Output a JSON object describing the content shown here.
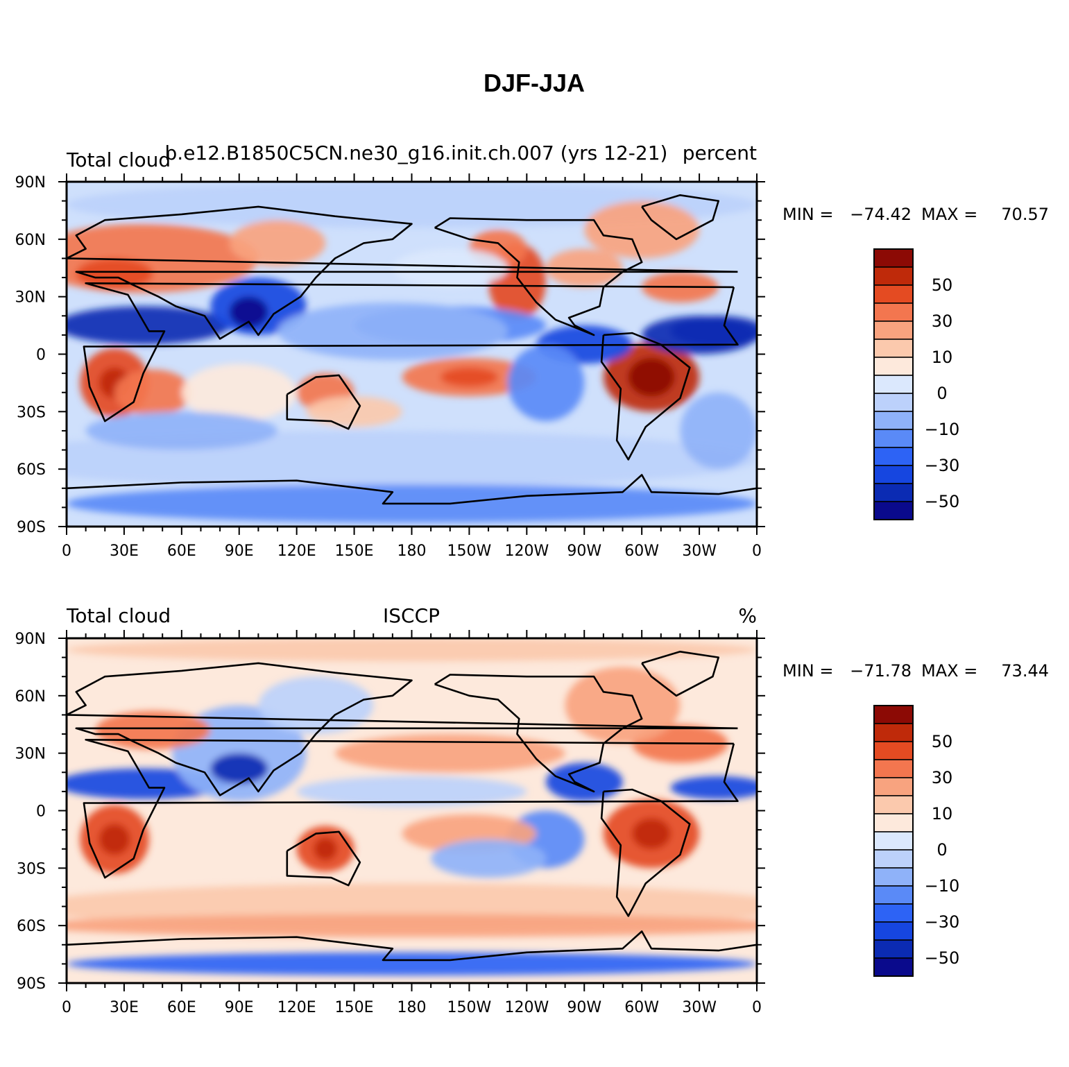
{
  "title": "DJF-JJA",
  "color_scale": [
    "#0a0a8c",
    "#0b2bb3",
    "#1646e0",
    "#2d63f5",
    "#5a8af7",
    "#8fb2f9",
    "#bcd1fb",
    "#dbe8fd",
    "#fde9dc",
    "#fbc9ad",
    "#f8a37f",
    "#f3764f",
    "#e44b22",
    "#bf2a0a",
    "#8c0a05"
  ],
  "colorbar_labels": [
    "50",
    "30",
    "10",
    "0",
    "−10",
    "−30",
    "−50"
  ],
  "lat_labels": [
    "90N",
    "60N",
    "30N",
    "0",
    "30S",
    "60S",
    "90S"
  ],
  "lon_labels": [
    "0",
    "30E",
    "60E",
    "90E",
    "120E",
    "150E",
    "180",
    "150W",
    "120W",
    "90W",
    "60W",
    "30W",
    "0"
  ],
  "panels": [
    {
      "id": "model",
      "left_title": "Total cloud",
      "center_title": "b.e12.B1850C5CN.ne30_g16.init.ch.007 (yrs 12-21)",
      "right_title": "percent",
      "min_label": "MIN =",
      "min_value": "−74.42",
      "max_label": "MAX =",
      "max_value": "70.57"
    },
    {
      "id": "obs",
      "left_title": "Total cloud",
      "center_title": "ISCCP",
      "right_title": "%",
      "min_label": "MIN =",
      "min_value": "−71.78",
      "max_label": "MAX =",
      "max_value": "73.44"
    }
  ]
}
